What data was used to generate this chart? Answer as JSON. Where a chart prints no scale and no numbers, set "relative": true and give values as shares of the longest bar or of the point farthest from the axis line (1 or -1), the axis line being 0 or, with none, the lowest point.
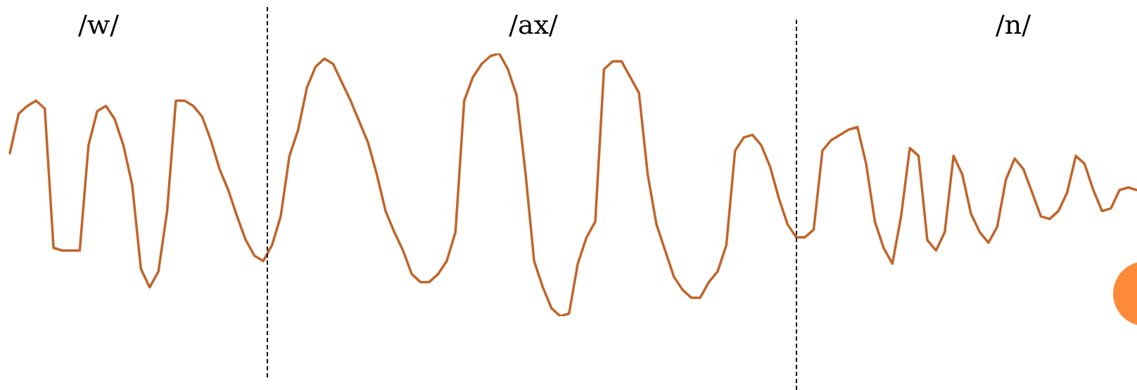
{
  "chart_data": {
    "type": "line",
    "relative": true,
    "marker": "none",
    "categories": [
      null,
      null,
      null,
      null,
      null,
      null,
      null,
      null,
      null,
      null,
      null,
      null,
      null,
      null,
      null,
      null,
      null,
      null,
      null,
      null,
      null,
      null,
      null,
      null,
      null,
      null,
      null,
      null,
      null,
      null,
      null,
      null,
      null,
      null,
      null,
      null,
      null,
      null,
      null,
      null,
      null,
      null,
      null,
      null,
      null,
      null,
      null,
      null,
      null,
      null,
      null,
      null,
      null,
      null,
      null,
      null,
      null,
      null,
      null,
      null,
      null,
      null,
      null,
      null,
      null,
      null,
      null,
      null,
      null,
      null,
      null,
      null,
      null,
      null,
      null,
      null,
      null,
      null,
      null,
      null,
      null,
      null,
      null,
      null,
      null,
      null,
      null,
      null,
      null,
      null,
      null,
      null,
      null,
      null,
      null,
      null,
      null,
      null,
      null,
      null,
      null,
      null,
      null,
      null,
      null,
      null,
      null,
      null,
      null,
      null,
      null,
      null,
      null,
      null,
      null,
      null,
      null,
      null,
      null,
      null,
      null,
      null,
      null,
      null,
      null,
      null,
      null,
      null,
      null,
      null
    ],
    "series": [
      {
        "color": "#c0652a",
        "values": [
          0.62,
          0.77,
          0.8,
          0.82,
          0.79,
          0.26,
          0.25,
          0.25,
          0.25,
          0.65,
          0.78,
          0.8,
          0.75,
          0.65,
          0.5,
          0.18,
          0.11,
          0.17,
          0.4,
          0.82,
          0.82,
          0.8,
          0.76,
          0.67,
          0.56,
          0.48,
          0.38,
          0.29,
          0.23,
          0.21,
          0.27,
          0.38,
          0.61,
          0.71,
          0.87,
          0.95,
          0.98,
          0.96,
          0.89,
          0.82,
          0.74,
          0.66,
          0.54,
          0.4,
          0.32,
          0.25,
          0.16,
          0.13,
          0.13,
          0.16,
          0.21,
          0.32,
          0.82,
          0.91,
          0.96,
          0.99,
          1,
          0.94,
          0.84,
          0.55,
          0.21,
          0.11,
          0.03,
          0,
          0.01,
          0.2,
          0.3,
          0.36,
          0.94,
          0.97,
          0.97,
          0.91,
          0.85,
          0.54,
          0.35,
          0.25,
          0.15,
          0.1,
          0.07,
          0.07,
          0.13,
          0.17,
          0.27,
          0.63,
          0.68,
          0.69,
          0.65,
          0.57,
          0.45,
          0.35,
          0.3,
          0.3,
          0.33,
          0.63,
          0.67,
          0.69,
          0.71,
          0.72,
          0.58,
          0.36,
          0.26,
          0.2,
          0.38,
          0.64,
          0.61,
          0.29,
          0.25,
          0.32,
          0.61,
          0.54,
          0.39,
          0.32,
          0.28,
          0.34,
          0.52,
          0.6,
          0.56,
          0.47,
          0.38,
          0.37,
          0.4,
          0.47,
          0.61,
          0.58,
          0.48,
          0.4,
          0.41,
          0.48,
          0.49,
          0.48
        ]
      }
    ],
    "annotations": [
      "/w/",
      "/ax/",
      "/n/"
    ]
  }
}
